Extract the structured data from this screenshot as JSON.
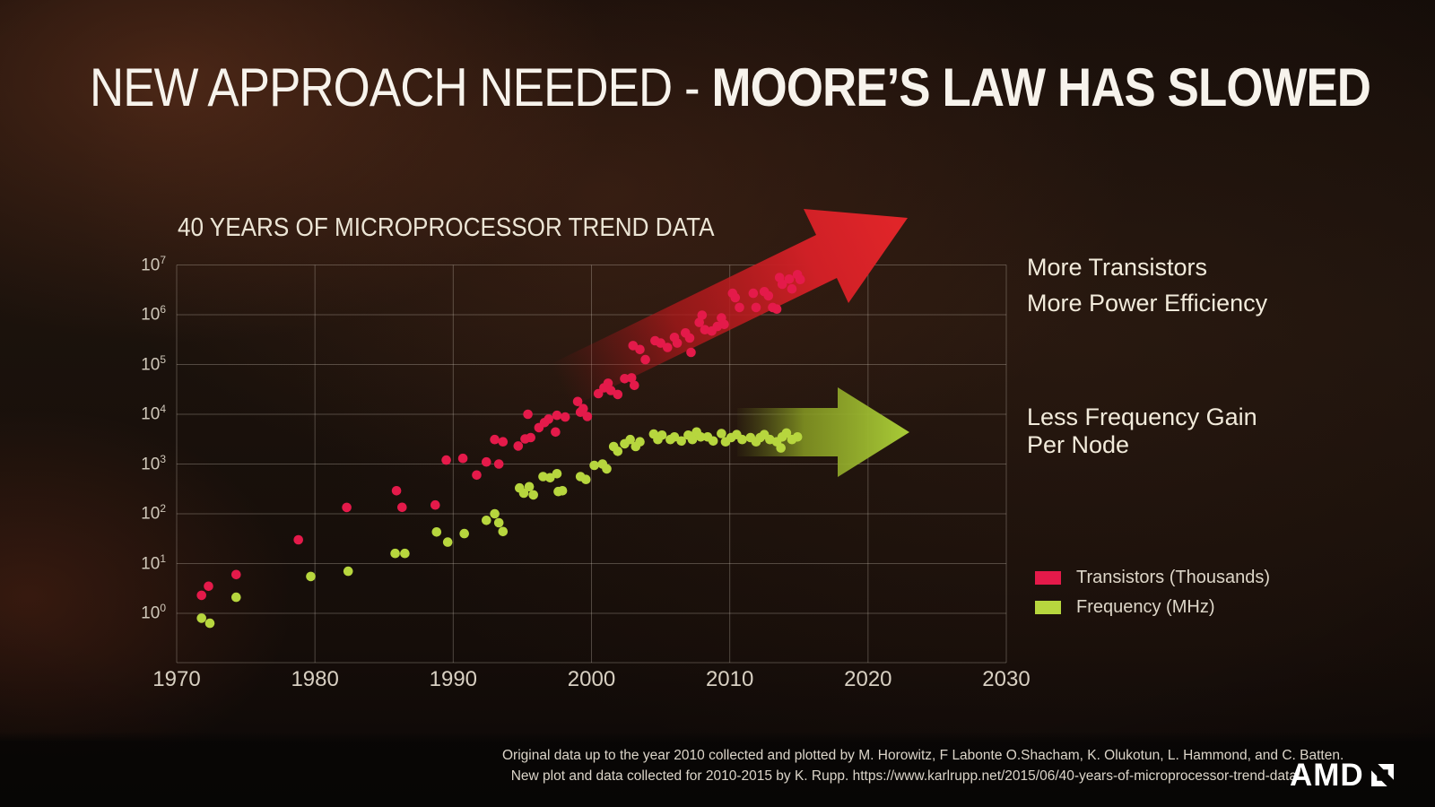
{
  "title": {
    "light": "NEW APPROACH NEEDED - ",
    "bold": "MOORE’S LAW HAS SLOWED"
  },
  "annotations": {
    "transistors_line1": "More Transistors",
    "transistors_line2": "More Power Efficiency",
    "frequency_line1": "Less Frequency Gain",
    "frequency_line2": "Per Node"
  },
  "footer": {
    "line1": "Original data up to the year 2010 collected and plotted by M. Horowitz, F Labonte O.Shacham, K. Olukotun, L. Hammond, and C. Batten.",
    "line2": "New plot and data collected for 2010-2015 by K. Rupp. https://www.karlrupp.net/2015/06/40-years-of-microprocessor-trend-data/",
    "logo_text": "AMD"
  },
  "chart_data": {
    "type": "scatter",
    "title": "40 YEARS OF MICROPROCESSOR TREND DATA",
    "xlabel": "",
    "ylabel": "",
    "x_range": [
      1970,
      2030
    ],
    "x_ticks": [
      1970,
      1980,
      1990,
      2000,
      2010,
      2020,
      2030
    ],
    "y_scale": "log10",
    "y_tick_exponents": [
      0,
      1,
      2,
      3,
      4,
      5,
      6,
      7
    ],
    "grid": true,
    "legend_position": "bottom-right",
    "grid_color": "rgba(215,205,192,0.30)",
    "trend_arrows": [
      {
        "name": "transistor-trend-arrow",
        "direction": "up-right",
        "color": "#d92327"
      },
      {
        "name": "frequency-trend-arrow",
        "direction": "right",
        "color": "#a9cc37"
      }
    ],
    "series": [
      {
        "name": "Transistors (Thousands)",
        "color": "#e41a4a",
        "points": [
          [
            1971.8,
            2.3
          ],
          [
            1972.3,
            3.5
          ],
          [
            1974.3,
            6
          ],
          [
            1978.8,
            30
          ],
          [
            1982.3,
            134
          ],
          [
            1985.9,
            290
          ],
          [
            1986.3,
            135
          ],
          [
            1988.7,
            150
          ],
          [
            1989.5,
            1200
          ],
          [
            1990.7,
            1300
          ],
          [
            1991.7,
            600
          ],
          [
            1992.4,
            1100
          ],
          [
            1993.0,
            3100
          ],
          [
            1993.3,
            1000
          ],
          [
            1993.6,
            2800
          ],
          [
            1994.7,
            2300
          ],
          [
            1995.2,
            3200
          ],
          [
            1995.4,
            10000
          ],
          [
            1995.6,
            3400
          ],
          [
            1996.2,
            5400
          ],
          [
            1996.6,
            6800
          ],
          [
            1996.9,
            8000
          ],
          [
            1997.4,
            4400
          ],
          [
            1997.5,
            9500
          ],
          [
            1998.1,
            8800
          ],
          [
            1999.0,
            18000
          ],
          [
            1999.2,
            11000
          ],
          [
            1999.4,
            13000
          ],
          [
            1999.7,
            9000
          ],
          [
            2000.5,
            26000
          ],
          [
            2000.9,
            34000
          ],
          [
            2001.2,
            42000
          ],
          [
            2001.4,
            30000
          ],
          [
            2001.9,
            25000
          ],
          [
            2002.4,
            52000
          ],
          [
            2002.9,
            54000
          ],
          [
            2003.0,
            240000
          ],
          [
            2003.1,
            38000
          ],
          [
            2003.5,
            200000
          ],
          [
            2003.9,
            125000
          ],
          [
            2004.6,
            300000
          ],
          [
            2005.0,
            270000
          ],
          [
            2005.5,
            220000
          ],
          [
            2006.0,
            350000
          ],
          [
            2006.2,
            270000
          ],
          [
            2006.8,
            430000
          ],
          [
            2007.1,
            340000
          ],
          [
            2007.2,
            175000
          ],
          [
            2007.8,
            700000
          ],
          [
            2008.0,
            980000
          ],
          [
            2008.2,
            500000
          ],
          [
            2008.7,
            470000
          ],
          [
            2009.1,
            580000
          ],
          [
            2009.4,
            860000
          ],
          [
            2009.6,
            640000
          ],
          [
            2010.2,
            2700000
          ],
          [
            2010.4,
            2200000
          ],
          [
            2010.7,
            1400000
          ],
          [
            2011.7,
            2700000
          ],
          [
            2011.9,
            1400000
          ],
          [
            2012.5,
            2900000
          ],
          [
            2012.8,
            2400000
          ],
          [
            2013.1,
            1400000
          ],
          [
            2013.4,
            1300000
          ],
          [
            2013.6,
            5600000
          ],
          [
            2013.8,
            4100000
          ],
          [
            2014.3,
            5200000
          ],
          [
            2014.5,
            3300000
          ],
          [
            2014.9,
            6400000
          ],
          [
            2015.1,
            5100000
          ]
        ]
      },
      {
        "name": "Frequency (MHz)",
        "color": "#b7d63e",
        "points": [
          [
            1971.8,
            0.8
          ],
          [
            1972.4,
            0.63
          ],
          [
            1974.3,
            2.1
          ],
          [
            1979.7,
            5.5
          ],
          [
            1982.4,
            7
          ],
          [
            1985.8,
            16
          ],
          [
            1986.5,
            16
          ],
          [
            1988.8,
            43
          ],
          [
            1989.6,
            27
          ],
          [
            1990.8,
            40
          ],
          [
            1992.4,
            74
          ],
          [
            1993.0,
            100
          ],
          [
            1993.3,
            66
          ],
          [
            1993.6,
            44
          ],
          [
            1994.8,
            330
          ],
          [
            1995.1,
            260
          ],
          [
            1995.5,
            350
          ],
          [
            1995.8,
            240
          ],
          [
            1996.5,
            560
          ],
          [
            1997.0,
            530
          ],
          [
            1997.5,
            640
          ],
          [
            1997.6,
            280
          ],
          [
            1997.9,
            290
          ],
          [
            1999.2,
            560
          ],
          [
            1999.6,
            490
          ],
          [
            2000.2,
            940
          ],
          [
            2000.8,
            1000
          ],
          [
            2001.1,
            800
          ],
          [
            2001.6,
            2250
          ],
          [
            2001.9,
            1800
          ],
          [
            2002.4,
            2550
          ],
          [
            2002.8,
            3100
          ],
          [
            2003.2,
            2250
          ],
          [
            2003.5,
            2800
          ],
          [
            2004.5,
            4000
          ],
          [
            2004.8,
            3100
          ],
          [
            2005.1,
            3800
          ],
          [
            2005.7,
            3100
          ],
          [
            2006.0,
            3500
          ],
          [
            2006.5,
            2900
          ],
          [
            2007.0,
            3800
          ],
          [
            2007.3,
            3100
          ],
          [
            2007.6,
            4400
          ],
          [
            2007.9,
            3500
          ],
          [
            2008.4,
            3500
          ],
          [
            2008.8,
            2900
          ],
          [
            2009.4,
            4100
          ],
          [
            2009.7,
            2800
          ],
          [
            2010.1,
            3400
          ],
          [
            2010.5,
            3900
          ],
          [
            2010.9,
            3100
          ],
          [
            2011.5,
            3400
          ],
          [
            2011.9,
            2800
          ],
          [
            2012.2,
            3400
          ],
          [
            2012.5,
            3900
          ],
          [
            2012.9,
            3100
          ],
          [
            2013.4,
            2800
          ],
          [
            2013.7,
            2100
          ],
          [
            2013.8,
            3500
          ],
          [
            2014.1,
            4200
          ],
          [
            2014.5,
            3100
          ],
          [
            2014.9,
            3500
          ]
        ]
      }
    ]
  }
}
